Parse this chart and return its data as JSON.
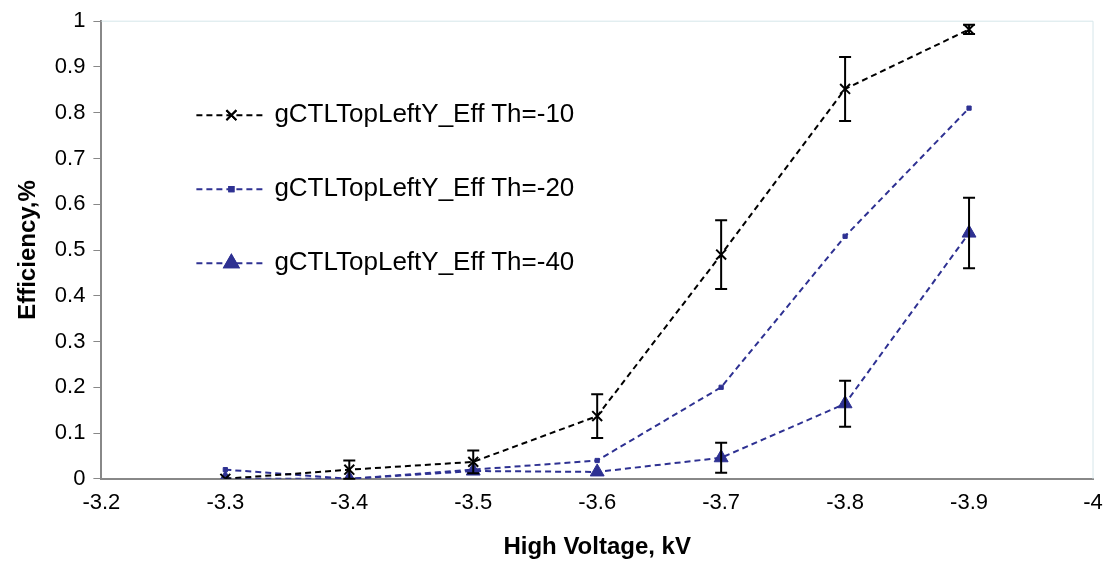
{
  "chart_data": {
    "type": "line",
    "xlabel": "High Voltage, kV",
    "ylabel": "Efficiency,%",
    "xlim": [
      -3.2,
      -4
    ],
    "xticks": [
      -3.2,
      -3.3,
      -3.4,
      -3.5,
      -3.6,
      -3.7,
      -3.8,
      -3.9,
      -4
    ],
    "ylim": [
      0,
      1
    ],
    "yticks": [
      0,
      0.1,
      0.2,
      0.3,
      0.4,
      0.5,
      0.6,
      0.7,
      0.8,
      0.9,
      1
    ],
    "x": [
      -3.3,
      -3.4,
      -3.5,
      -3.6,
      -3.7,
      -3.8,
      -3.9
    ],
    "grid": false,
    "legend": "top left",
    "line_style": "dashed",
    "series": [
      {
        "name": "gCTLTopLeftY_Eff Th=-10",
        "color": "#000000",
        "marker": "cross",
        "values": [
          0,
          0.02,
          0.037,
          0.137,
          0.49,
          0.852,
          0.982
        ],
        "errors": [
          null,
          0.02,
          0.025,
          0.048,
          0.075,
          0.07,
          0.01
        ]
      },
      {
        "name": "gCTLTopLeftY_Eff Th=-20",
        "color": "#2e3192",
        "marker": "square",
        "values": [
          0.02,
          0,
          null,
          0.04,
          0.2,
          0.53,
          0.81
        ]
      },
      {
        "name": "gCTLTopLeftY_Eff Th=-40",
        "color": "#2e3192",
        "marker": "triangle",
        "values": [
          0,
          0,
          0.017,
          0.015,
          0.046,
          0.164,
          0.537
        ],
        "errors": [
          null,
          null,
          null,
          null,
          0.033,
          0.05,
          0.077
        ]
      }
    ]
  }
}
